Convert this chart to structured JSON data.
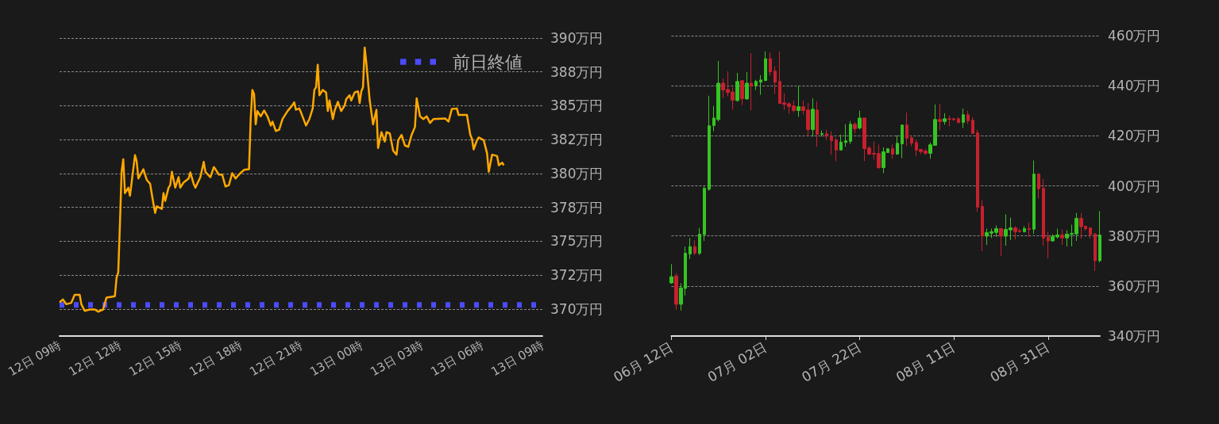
{
  "chart_data": [
    {
      "type": "line",
      "ylim": [
        368,
        390
      ],
      "categories": [
        "12日 09時",
        null,
        null,
        null,
        null,
        null,
        null,
        null,
        null,
        null,
        null,
        null,
        null,
        null,
        null,
        null,
        null,
        null,
        null,
        null,
        null,
        null,
        null,
        null,
        null,
        null,
        null,
        null,
        null,
        null,
        null,
        null,
        null,
        null,
        null,
        null,
        "12日 12時",
        null,
        null,
        null,
        null,
        null,
        null,
        null,
        null,
        null,
        null,
        null,
        null,
        null,
        null,
        null,
        null,
        null,
        null,
        null,
        null,
        null,
        null,
        null,
        null,
        null,
        null,
        null,
        null,
        null,
        null,
        null,
        null,
        null,
        null,
        null,
        "12日 15時",
        null,
        null,
        null,
        null,
        null,
        null,
        null,
        null,
        null,
        null,
        null,
        null,
        null,
        null,
        null,
        null,
        null,
        null,
        null,
        null,
        null,
        null,
        null,
        null,
        null,
        null,
        null,
        null,
        null,
        null,
        null,
        null,
        null,
        null,
        null,
        "12日 18時",
        null,
        null,
        null,
        null,
        null,
        null,
        null,
        null,
        null,
        null,
        null,
        null,
        null,
        null,
        null,
        null,
        null,
        null,
        null,
        null,
        null,
        null,
        null,
        null,
        null,
        null,
        null,
        null,
        null,
        null,
        null,
        null,
        null,
        null,
        null,
        "12日 21時",
        null,
        null,
        null,
        null,
        null,
        null,
        null,
        null,
        null,
        null,
        null,
        null,
        null,
        null,
        null,
        null,
        null,
        null,
        null,
        null,
        null,
        null,
        null,
        null,
        null,
        null,
        null,
        null,
        null,
        null,
        null,
        null,
        null,
        null,
        null,
        "13日 00時",
        null,
        null,
        null,
        null,
        null,
        null,
        null,
        null,
        null,
        null,
        null,
        null,
        null,
        null,
        null,
        null,
        null,
        null,
        null,
        null,
        null,
        null,
        null,
        null,
        null,
        null,
        null,
        null,
        null,
        null,
        null,
        null,
        null,
        null,
        null,
        "13日 03時",
        null,
        null,
        null,
        null,
        null,
        null,
        null,
        null,
        null,
        null,
        null,
        null,
        null,
        null,
        null,
        null,
        null,
        null,
        null,
        null,
        null,
        null,
        null,
        null,
        null,
        null,
        null,
        null,
        null,
        null,
        null,
        null,
        null,
        null,
        null,
        "13日 06時",
        null,
        null,
        null,
        null,
        null,
        null,
        null,
        null,
        null,
        null,
        null,
        null,
        null,
        null,
        null,
        null,
        null,
        null,
        null,
        null,
        null,
        null,
        null,
        null,
        null,
        null,
        null,
        null,
        null,
        null,
        null,
        null,
        null,
        null,
        null,
        "13日 09時"
      ],
      "yticks": [
        {
          "value": 370,
          "label": "370万円"
        },
        {
          "value": 372.5,
          "label": "372万円"
        },
        {
          "value": 375,
          "label": "375万円"
        },
        {
          "value": 377.5,
          "label": "378万円"
        },
        {
          "value": 380,
          "label": "380万円"
        },
        {
          "value": 382.5,
          "label": "382万円"
        },
        {
          "value": 385,
          "label": "385万円"
        },
        {
          "value": 387.5,
          "label": "388万円"
        },
        {
          "value": 390,
          "label": "390万円"
        }
      ],
      "grid": "y",
      "legend": "top right",
      "series": [
        {
          "color": "#ffa800",
          "values": [
            370.49,
            null,
            370.7,
            null,
            370.35,
            null,
            null,
            370.45,
            null,
            371.04,
            null,
            null,
            371.04,
            370.35,
            null,
            369.86,
            null,
            null,
            369.96,
            null,
            null,
            369.96,
            null,
            369.8,
            null,
            null,
            369.96,
            null,
            370.84,
            null,
            null,
            370.9,
            null,
            370.94,
            372.3,
            372.7,
            376.21,
            380.12,
            381.05,
            378.55,
            null,
            378.95,
            378.36,
            379.34,
            null,
            381.35,
            380.9,
            379.63,
            null,
            null,
            380.31,
            null,
            379.53,
            null,
            379.24,
            null,
            377.77,
            377.09,
            377.58,
            null,
            null,
            377.38,
            378.55,
            377.97,
            null,
            378.95,
            379.14,
            380.12,
            null,
            378.95,
            null,
            379.73,
            378.95,
            null,
            379.34,
            null,
            null,
            379.63,
            380.08,
            null,
            379.24,
            378.95,
            null,
            null,
            379.73,
            null,
            380.86,
            380.12,
            null,
            null,
            379.73,
            null,
            380.47,
            380.31,
            null,
            379.92,
            null,
            379.92,
            null,
            379.04,
            null,
            379.14,
            null,
            380.02,
            null,
            379.63,
            null,
            379.92,
            null,
            null,
            380.27,
            null,
            null,
            380.31,
            384.02,
            386.17,
            385.88,
            383.63,
            384.61,
            null,
            384.22,
            null,
            384.65,
            null,
            384.22,
            null,
            383.54,
            383.83,
            null,
            383.14,
            null,
            383.24,
            null,
            384.02,
            null,
            null,
            384.61,
            null,
            384.9,
            null,
            385.25,
            384.71,
            null,
            384.8,
            384.51,
            null,
            null,
            383.54,
            null,
            384.02,
            null,
            384.8,
            386.17,
            386.37,
            388.03,
            385.78,
            null,
            386.17,
            null,
            385.98,
            384.61,
            385.39,
            null,
            384.02,
            384.61,
            null,
            385.29,
            null,
            384.61,
            null,
            385.0,
            385.49,
            null,
            385.78,
            385.39,
            null,
            385.98,
            null,
            386.07,
            385.2,
            386.07,
            386.37,
            389.3,
            388.13,
            null,
            385.39,
            null,
            383.63,
            null,
            384.71,
            381.88,
            null,
            383.05,
            null,
            382.36,
            383.05,
            null,
            382.95,
            null,
            381.68,
            null,
            381.39,
            382.46,
            null,
            382.85,
            null,
            382.07,
            null,
            381.97,
            null,
            382.85,
            null,
            383.44,
            385.55,
            null,
            384.22,
            null,
            384.02,
            null,
            384.22,
            null,
            383.73,
            null,
            384.02,
            null,
            null,
            null,
            null,
            null,
            null,
            384.06,
            null,
            383.83,
            null,
            384.77,
            null,
            null,
            384.8,
            384.32,
            null,
            null,
            null,
            null,
            384.32,
            null,
            382.85,
            382.56,
            381.78,
            null,
            382.46,
            382.66,
            null,
            null,
            382.46,
            null,
            381.48,
            380.12,
            null,
            381.39,
            null,
            null,
            381.29,
            380.61,
            null,
            380.8,
            380.61,
            null,
            null,
            null,
            null,
            null,
            null,
            null,
            null,
            null,
            null,
            null,
            null,
            null,
            null,
            null,
            null,
            null,
            null,
            null,
            null,
            null,
            null,
            null
          ]
        },
        {
          "name": "前日終値",
          "color": "#4b4bff",
          "line_style": "dotted",
          "values": [
            370.3,
            null,
            null,
            null,
            null,
            null,
            null,
            null,
            null,
            null,
            null,
            null,
            null,
            null,
            null,
            null,
            null,
            null,
            null,
            null,
            null,
            null,
            null,
            null,
            null,
            null,
            null,
            null,
            null,
            null,
            null,
            null,
            null,
            null,
            null,
            null,
            null,
            null,
            null,
            null,
            null,
            null,
            null,
            null,
            null,
            null,
            null,
            null,
            null,
            null,
            null,
            null,
            null,
            null,
            null,
            null,
            null,
            null,
            null,
            null,
            null,
            null,
            null,
            null,
            null,
            null,
            null,
            null,
            null,
            null,
            null,
            null,
            null,
            null,
            null,
            null,
            null,
            null,
            null,
            null,
            null,
            null,
            null,
            null,
            null,
            null,
            null,
            null,
            null,
            null,
            null,
            null,
            null,
            null,
            null,
            null,
            null,
            null,
            null,
            null,
            null,
            null,
            null,
            null,
            null,
            null,
            null,
            null,
            null,
            null,
            null,
            null,
            null,
            null,
            null,
            null,
            null,
            null,
            null,
            null,
            null,
            null,
            null,
            null,
            null,
            null,
            null,
            null,
            null,
            null,
            null,
            null,
            null,
            null,
            null,
            null,
            null,
            null,
            null,
            null,
            null,
            null,
            null,
            null,
            null,
            null,
            null,
            null,
            null,
            null,
            null,
            null,
            null,
            null,
            null,
            null,
            null,
            null,
            null,
            null,
            null,
            null,
            null,
            null,
            null,
            null,
            null,
            null,
            null,
            null,
            null,
            null,
            null,
            null,
            null,
            null,
            null,
            null,
            null,
            null,
            null,
            null,
            null,
            null,
            null,
            null,
            null,
            null,
            null,
            null,
            null,
            null,
            null,
            null,
            null,
            null,
            null,
            null,
            null,
            null,
            null,
            null,
            null,
            null,
            null,
            null,
            null,
            null,
            null,
            null,
            null,
            null,
            null,
            null,
            null,
            null,
            null,
            null,
            null,
            null,
            null,
            null,
            null,
            null,
            null,
            null,
            null,
            null,
            null,
            null,
            null,
            null,
            null,
            null,
            null,
            null,
            null,
            null,
            null,
            null,
            null,
            null,
            null,
            null,
            null,
            null,
            null,
            null,
            null,
            null,
            null,
            null,
            null,
            null,
            null,
            null,
            null,
            null,
            null,
            null,
            null,
            null,
            null,
            null,
            null,
            null,
            null,
            null,
            null,
            null,
            null,
            null,
            null,
            null,
            null,
            null,
            null,
            null,
            null,
            null,
            null,
            null,
            null,
            null,
            null,
            null,
            null,
            null,
            370.3
          ]
        }
      ]
    },
    {
      "type": "candlestick",
      "ylim": [
        340,
        460
      ],
      "yticks": [
        {
          "value": 340,
          "label": "340万円"
        },
        {
          "value": 360,
          "label": "360万円"
        },
        {
          "value": 380,
          "label": "380万円"
        },
        {
          "value": 400,
          "label": "400万円"
        },
        {
          "value": 420,
          "label": "420万円"
        },
        {
          "value": 440,
          "label": "440万円"
        },
        {
          "value": 460,
          "label": "460万円"
        }
      ],
      "grid": "y",
      "categories": [
        "06月 12日",
        null,
        null,
        null,
        null,
        null,
        null,
        null,
        null,
        null,
        null,
        null,
        null,
        null,
        null,
        null,
        null,
        null,
        null,
        null,
        "07月 02日",
        null,
        null,
        null,
        null,
        null,
        null,
        null,
        null,
        null,
        null,
        null,
        null,
        null,
        null,
        null,
        null,
        null,
        null,
        null,
        "07月 22日",
        null,
        null,
        null,
        null,
        null,
        null,
        null,
        null,
        null,
        null,
        null,
        null,
        null,
        null,
        null,
        null,
        null,
        null,
        null,
        "08月 11日",
        null,
        null,
        null,
        null,
        null,
        null,
        null,
        null,
        null,
        null,
        null,
        null,
        null,
        null,
        null,
        null,
        null,
        null,
        null,
        "08月 31日",
        null,
        null,
        null,
        null,
        null,
        null,
        null,
        null,
        null,
        null,
        null
      ],
      "ohlc": [
        [
          361.2,
          368.7,
          360.9,
          363.7
        ],
        [
          364.0,
          365.1,
          350.5,
          352.7
        ],
        [
          352.7,
          361.1,
          350.2,
          359.2
        ],
        [
          359.0,
          375.7,
          356.2,
          373.1
        ],
        [
          372.8,
          379.1,
          370.7,
          375.7
        ],
        [
          375.7,
          378.3,
          372.3,
          373.1
        ],
        [
          373.1,
          383.2,
          372.3,
          380.7
        ],
        [
          380.5,
          399.7,
          378.0,
          399.0
        ],
        [
          398.6,
          436.0,
          398.1,
          424.0
        ],
        [
          424.1,
          431.9,
          421.8,
          427.1
        ],
        [
          426.5,
          449.9,
          425.7,
          441.0
        ],
        [
          441.0,
          442.9,
          435.1,
          438.3
        ],
        [
          438.5,
          445.8,
          435.8,
          437.3
        ],
        [
          437.5,
          439.3,
          430.4,
          434.2
        ],
        [
          434.1,
          445.1,
          433.6,
          441.7
        ],
        [
          442.0,
          442.0,
          432.3,
          434.8
        ],
        [
          434.7,
          445.4,
          434.4,
          441.0
        ],
        [
          441.0,
          453.0,
          430.1,
          439.9
        ],
        [
          440.0,
          442.3,
          438.3,
          441.7
        ],
        [
          441.4,
          444.2,
          436.4,
          442.3
        ],
        [
          442.1,
          453.7,
          441.8,
          450.8
        ],
        [
          450.8,
          453.3,
          444.0,
          445.6
        ],
        [
          445.8,
          447.7,
          436.7,
          441.4
        ],
        [
          441.7,
          453.7,
          432.9,
          432.9
        ],
        [
          433.2,
          436.9,
          430.4,
          432.5
        ],
        [
          432.8,
          433.4,
          428.8,
          431.7
        ],
        [
          431.9,
          434.1,
          429.4,
          430.1
        ],
        [
          430.1,
          439.9,
          427.6,
          431.6
        ],
        [
          431.6,
          434.1,
          428.5,
          430.1
        ],
        [
          430.3,
          433.1,
          420.0,
          422.5
        ],
        [
          422.5,
          435.0,
          419.7,
          430.6
        ],
        [
          430.3,
          433.8,
          415.6,
          420.6
        ],
        [
          420.6,
          422.1,
          419.7,
          420.9
        ],
        [
          420.8,
          422.4,
          418.4,
          419.8
        ],
        [
          419.7,
          421.8,
          412.4,
          418.1
        ],
        [
          418.3,
          419.2,
          409.9,
          414.3
        ],
        [
          414.3,
          420.5,
          414.3,
          417.5
        ],
        [
          417.3,
          424.6,
          415.6,
          418.0
        ],
        [
          417.8,
          425.9,
          416.8,
          424.6
        ],
        [
          424.6,
          425.4,
          420.9,
          422.8
        ],
        [
          423.1,
          430.0,
          422.5,
          427.1
        ],
        [
          427.1,
          427.1,
          409.9,
          414.9
        ],
        [
          415.1,
          415.8,
          412.4,
          412.7
        ],
        [
          413.0,
          417.7,
          410.5,
          412.7
        ],
        [
          412.9,
          416.5,
          406.7,
          407.3
        ],
        [
          407.3,
          415.4,
          405.1,
          413.6
        ],
        [
          413.3,
          415.1,
          413.3,
          414.8
        ],
        [
          414.8,
          416.5,
          410.8,
          412.7
        ],
        [
          412.7,
          420.2,
          412.4,
          417.0
        ],
        [
          416.8,
          424.3,
          411.1,
          424.3
        ],
        [
          424.3,
          429.3,
          415.9,
          419.0
        ],
        [
          419.2,
          420.2,
          415.9,
          417.1
        ],
        [
          417.3,
          418.6,
          411.8,
          414.3
        ],
        [
          414.5,
          414.8,
          412.7,
          413.7
        ],
        [
          413.9,
          414.8,
          412.4,
          413.0
        ],
        [
          413.0,
          417.3,
          410.8,
          416.4
        ],
        [
          416.2,
          432.5,
          416.2,
          426.5
        ],
        [
          426.5,
          432.8,
          422.2,
          425.7
        ],
        [
          425.7,
          429.0,
          424.4,
          426.8
        ],
        [
          426.8,
          428.1,
          423.8,
          426.6
        ],
        [
          426.8,
          427.1,
          426.0,
          426.4
        ],
        [
          426.8,
          427.4,
          425.0,
          425.3
        ],
        [
          425.3,
          430.9,
          423.1,
          428.4
        ],
        [
          428.4,
          430.0,
          424.7,
          426.0
        ],
        [
          426.2,
          427.4,
          420.9,
          420.9
        ],
        [
          421.1,
          422.4,
          389.7,
          391.5
        ],
        [
          391.8,
          394.3,
          373.9,
          379.9
        ],
        [
          379.9,
          382.9,
          376.4,
          381.3
        ],
        [
          381.1,
          382.9,
          379.2,
          381.7
        ],
        [
          381.4,
          384.2,
          379.6,
          382.9
        ],
        [
          382.9,
          383.2,
          372.0,
          379.9
        ],
        [
          379.9,
          388.6,
          376.1,
          382.6
        ],
        [
          382.4,
          387.3,
          378.3,
          383.2
        ],
        [
          383.2,
          383.9,
          378.6,
          381.7
        ],
        [
          382.0,
          382.9,
          381.3,
          381.7
        ],
        [
          381.7,
          383.9,
          381.3,
          382.9
        ],
        [
          382.9,
          385.4,
          379.6,
          382.6
        ],
        [
          382.7,
          410.1,
          380.8,
          404.7
        ],
        [
          404.7,
          405.0,
          395.0,
          398.8
        ],
        [
          399.0,
          402.7,
          376.1,
          379.2
        ],
        [
          379.6,
          381.7,
          371.0,
          378.0
        ],
        [
          378.0,
          380.7,
          377.7,
          379.8
        ],
        [
          379.6,
          382.9,
          378.9,
          380.4
        ],
        [
          380.4,
          382.6,
          376.4,
          379.2
        ],
        [
          379.2,
          382.3,
          375.8,
          380.7
        ],
        [
          380.7,
          384.5,
          375.8,
          381.0
        ],
        [
          380.8,
          389.2,
          378.0,
          387.0
        ],
        [
          387.0,
          389.2,
          378.9,
          383.7
        ],
        [
          383.9,
          383.9,
          382.1,
          382.9
        ],
        [
          383.2,
          383.2,
          378.9,
          380.5
        ],
        [
          380.8,
          381.1,
          366.0,
          370.1
        ],
        [
          370.1,
          389.9,
          369.4,
          380.4
        ]
      ]
    }
  ]
}
